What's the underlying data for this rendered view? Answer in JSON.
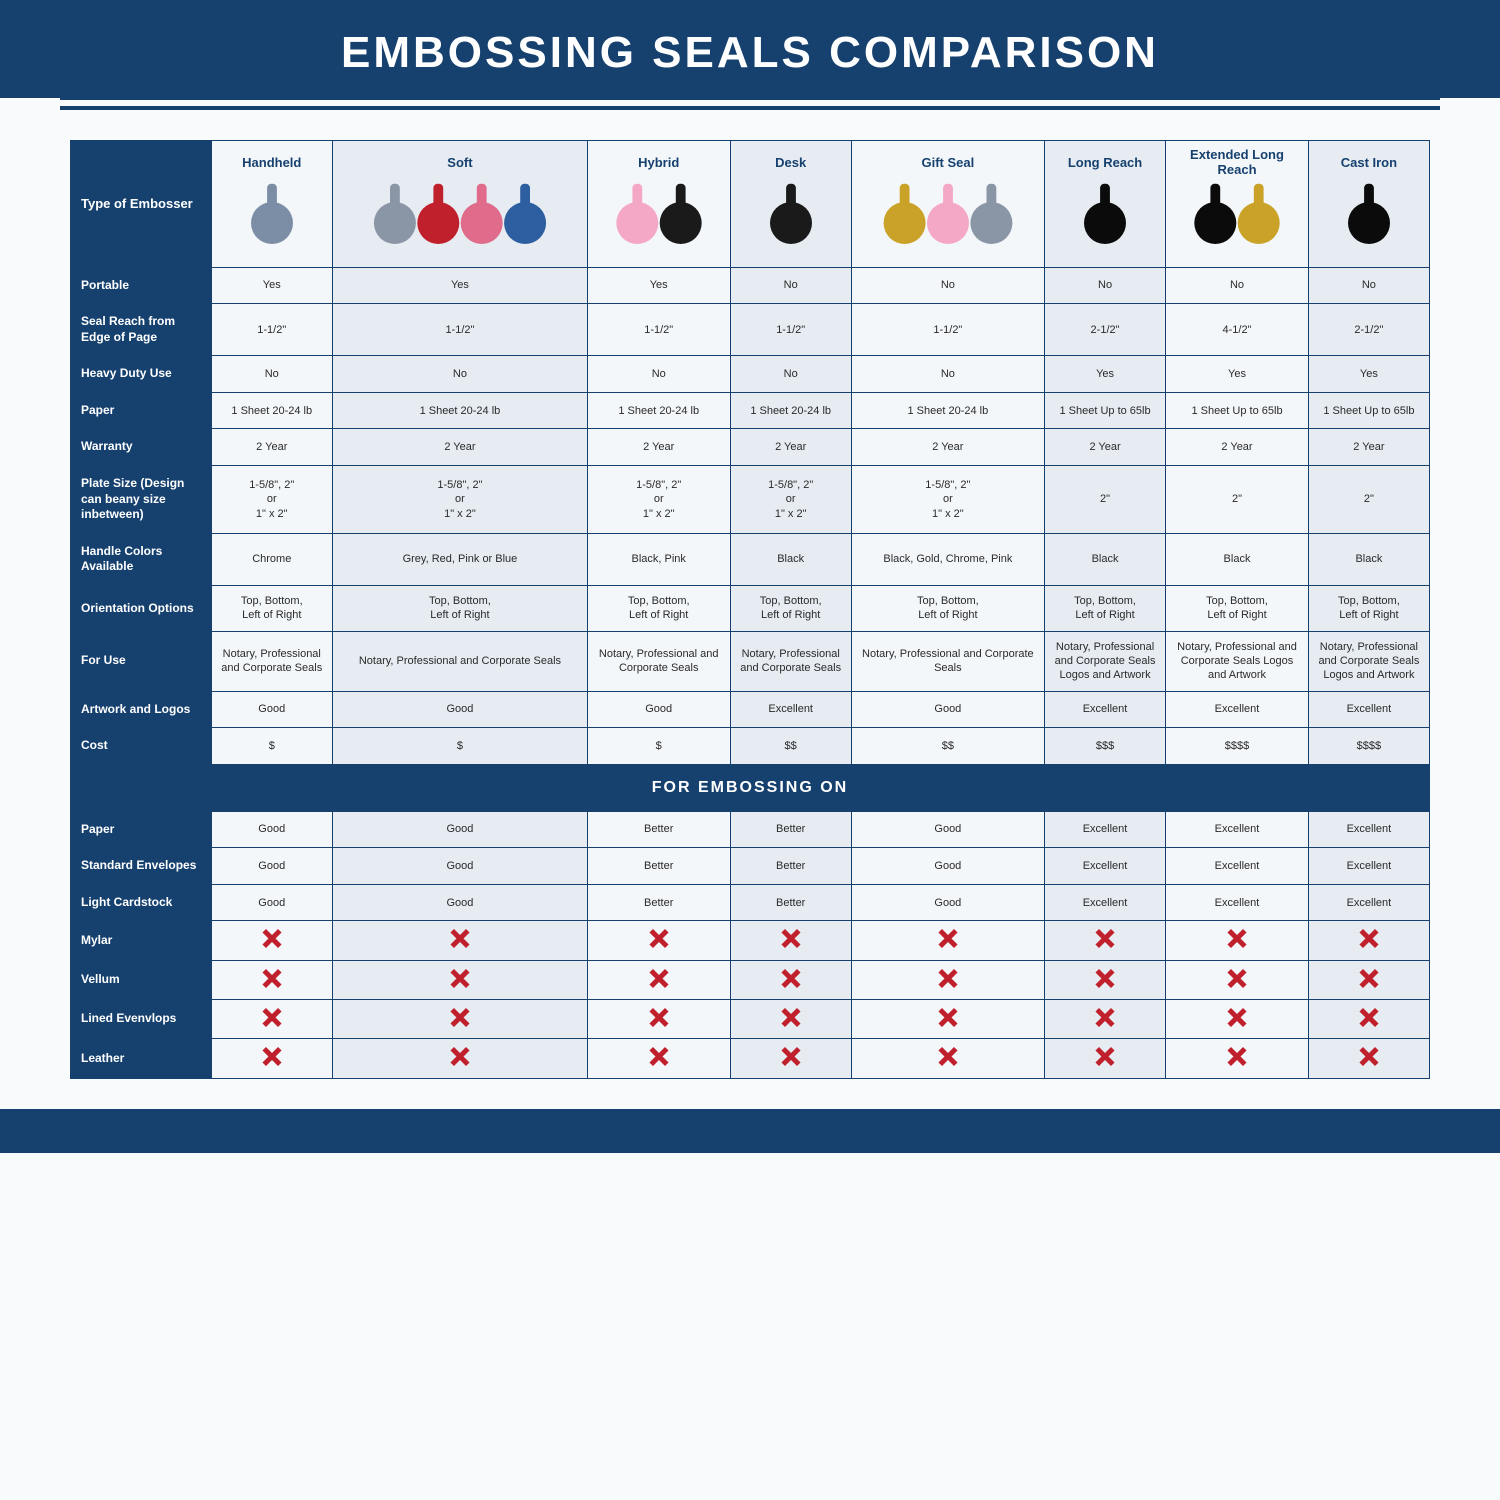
{
  "colors": {
    "brand": "#16416f",
    "title_text": "#ffffff",
    "border": "#16416f",
    "row_label_bg": "#16416f",
    "row_label_text": "#ffffff",
    "cell_text": "#2a2a2a",
    "zebra_even": "#e6ecf2",
    "zebra_odd": "#f4f7fa",
    "accent_line": "#16416f",
    "x_color": "#c0202c",
    "header_top_border": "#16416f"
  },
  "title": "EMBOSSING SEALS COMPARISON",
  "table": {
    "type": "table",
    "header_row_label": "Type of Embosser",
    "columns": [
      "Handheld",
      "Soft",
      "Hybrid",
      "Desk",
      "Gift Seal",
      "Long Reach",
      "Extended Long Reach",
      "Cast Iron"
    ],
    "column_icon_colors": [
      [
        "#7c8ea6"
      ],
      [
        "#8a96a6",
        "#c0202c",
        "#e06b8a",
        "#2d5fa0"
      ],
      [
        "#f4a8c6",
        "#1a1a1a"
      ],
      [
        "#1a1a1a"
      ],
      [
        "#c9a227",
        "#f4a8c6",
        "#8a96a6"
      ],
      [
        "#0b0b0b"
      ],
      [
        "#0b0b0b",
        "#c9a227"
      ],
      [
        "#0b0b0b"
      ]
    ],
    "rows": [
      {
        "label": "Portable",
        "cells": [
          "Yes",
          "Yes",
          "Yes",
          "No",
          "No",
          "No",
          "No",
          "No"
        ]
      },
      {
        "label": "Seal Reach from Edge of Page",
        "cells": [
          "1-1/2\"",
          "1-1/2\"",
          "1-1/2\"",
          "1-1/2\"",
          "1-1/2\"",
          "2-1/2\"",
          "4-1/2\"",
          "2-1/2\""
        ]
      },
      {
        "label": "Heavy Duty Use",
        "cells": [
          "No",
          "No",
          "No",
          "No",
          "No",
          "Yes",
          "Yes",
          "Yes"
        ]
      },
      {
        "label": "Paper",
        "cells": [
          "1 Sheet 20-24 lb",
          "1 Sheet 20-24 lb",
          "1 Sheet 20-24 lb",
          "1 Sheet 20-24 lb",
          "1 Sheet 20-24 lb",
          "1 Sheet Up to 65lb",
          "1 Sheet Up to 65lb",
          "1 Sheet Up to 65lb"
        ]
      },
      {
        "label": "Warranty",
        "cells": [
          "2 Year",
          "2 Year",
          "2 Year",
          "2 Year",
          "2 Year",
          "2 Year",
          "2 Year",
          "2 Year"
        ]
      },
      {
        "label": "Plate Size (Design can beany size inbetween)",
        "cells": [
          "1-5/8\", 2\"\nor\n1\" x 2\"",
          "1-5/8\", 2\"\nor\n1\" x 2\"",
          "1-5/8\", 2\"\nor\n1\" x 2\"",
          "1-5/8\", 2\"\nor\n1\" x 2\"",
          "1-5/8\", 2\"\nor\n1\" x 2\"",
          "2\"",
          "2\"",
          "2\""
        ]
      },
      {
        "label": "Handle Colors Available",
        "cells": [
          "Chrome",
          "Grey, Red, Pink or Blue",
          "Black, Pink",
          "Black",
          "Black, Gold, Chrome, Pink",
          "Black",
          "Black",
          "Black"
        ]
      },
      {
        "label": "Orientation Options",
        "cells": [
          "Top, Bottom,\nLeft of Right",
          "Top, Bottom,\nLeft of Right",
          "Top, Bottom,\nLeft of Right",
          "Top, Bottom,\nLeft of Right",
          "Top, Bottom,\nLeft of Right",
          "Top, Bottom,\nLeft of Right",
          "Top, Bottom,\nLeft of Right",
          "Top, Bottom,\nLeft of Right"
        ]
      },
      {
        "label": "For Use",
        "cells": [
          "Notary, Professional and Corporate Seals",
          "Notary, Professional and Corporate Seals",
          "Notary, Professional and Corporate Seals",
          "Notary, Professional and Corporate Seals",
          "Notary, Professional and Corporate Seals",
          "Notary, Professional and Corporate Seals Logos and Artwork",
          "Notary, Professional and Corporate Seals Logos and Artwork",
          "Notary, Professional and Corporate Seals Logos and Artwork"
        ]
      },
      {
        "label": "Artwork and Logos",
        "cells": [
          "Good",
          "Good",
          "Good",
          "Excellent",
          "Good",
          "Excellent",
          "Excellent",
          "Excellent"
        ]
      },
      {
        "label": "Cost",
        "cells": [
          "$",
          "$",
          "$",
          "$$",
          "$$",
          "$$$",
          "$$$$",
          "$$$$"
        ]
      }
    ],
    "section2_title": "FOR EMBOSSING ON",
    "rows2": [
      {
        "label": "Paper",
        "cells": [
          "Good",
          "Good",
          "Better",
          "Better",
          "Good",
          "Excellent",
          "Excellent",
          "Excellent"
        ]
      },
      {
        "label": "Standard Envelopes",
        "cells": [
          "Good",
          "Good",
          "Better",
          "Better",
          "Good",
          "Excellent",
          "Excellent",
          "Excellent"
        ]
      },
      {
        "label": "Light Cardstock",
        "cells": [
          "Good",
          "Good",
          "Better",
          "Better",
          "Good",
          "Excellent",
          "Excellent",
          "Excellent"
        ]
      },
      {
        "label": "Mylar",
        "cells": [
          "X",
          "X",
          "X",
          "X",
          "X",
          "X",
          "X",
          "X"
        ]
      },
      {
        "label": "Vellum",
        "cells": [
          "X",
          "X",
          "X",
          "X",
          "X",
          "X",
          "X",
          "X"
        ]
      },
      {
        "label": "Lined Evenvlops",
        "cells": [
          "X",
          "X",
          "X",
          "X",
          "X",
          "X",
          "X",
          "X"
        ]
      },
      {
        "label": "Leather",
        "cells": [
          "X",
          "X",
          "X",
          "X",
          "X",
          "X",
          "X",
          "X"
        ]
      }
    ]
  },
  "layout": {
    "title_fontsize": 44,
    "col_header_fontsize": 13,
    "label_fontsize": 12,
    "cell_fontsize": 11,
    "section_fontsize": 16,
    "label_col_width_pct": 12.5,
    "data_col_width_pct": 10.94
  }
}
